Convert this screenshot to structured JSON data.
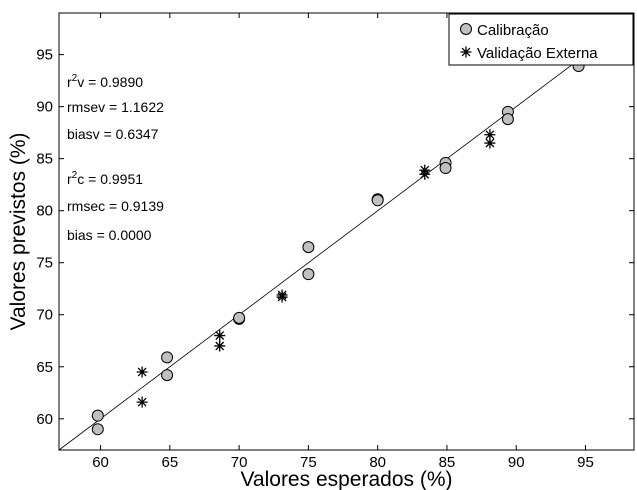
{
  "chart_data": {
    "type": "scatter",
    "title": "",
    "xlabel": "Valores esperados (%)",
    "ylabel": "Valores previstos (%)",
    "xlim": [
      57,
      98.5
    ],
    "ylim": [
      57,
      99
    ],
    "xticks": [
      60,
      65,
      70,
      75,
      80,
      85,
      90,
      95
    ],
    "yticks": [
      60,
      65,
      70,
      75,
      80,
      85,
      90,
      95
    ],
    "grid": false,
    "legend_position": "top-right",
    "reference_line": {
      "label": "",
      "x": [
        57,
        98.5
      ],
      "y": [
        57,
        98.5
      ]
    },
    "series": [
      {
        "name": "Calibração",
        "marker": "circle",
        "color": "#c0c0c0",
        "points": [
          {
            "x": 59.8,
            "y": 60.3
          },
          {
            "x": 59.8,
            "y": 59.0
          },
          {
            "x": 64.8,
            "y": 65.9
          },
          {
            "x": 64.8,
            "y": 64.2
          },
          {
            "x": 70.0,
            "y": 69.6
          },
          {
            "x": 70.0,
            "y": 69.7
          },
          {
            "x": 75.0,
            "y": 76.5
          },
          {
            "x": 75.0,
            "y": 73.9
          },
          {
            "x": 80.0,
            "y": 81.1
          },
          {
            "x": 80.0,
            "y": 81.0
          },
          {
            "x": 84.9,
            "y": 84.6
          },
          {
            "x": 84.9,
            "y": 84.1
          },
          {
            "x": 89.4,
            "y": 89.5
          },
          {
            "x": 89.4,
            "y": 88.8
          },
          {
            "x": 94.5,
            "y": 93.9
          }
        ]
      },
      {
        "name": "Validação Externa",
        "marker": "asterisk",
        "color": "#000000",
        "points": [
          {
            "x": 63.0,
            "y": 64.5
          },
          {
            "x": 63.0,
            "y": 61.6
          },
          {
            "x": 68.6,
            "y": 68.0
          },
          {
            "x": 68.6,
            "y": 67.0
          },
          {
            "x": 73.1,
            "y": 71.9
          },
          {
            "x": 73.1,
            "y": 71.7
          },
          {
            "x": 83.4,
            "y": 83.9
          },
          {
            "x": 83.4,
            "y": 83.5
          },
          {
            "x": 88.1,
            "y": 87.3
          },
          {
            "x": 88.1,
            "y": 86.5
          }
        ]
      }
    ],
    "annotations": [
      {
        "pre": "r",
        "sup": "2",
        "post": "v = 0.9890"
      },
      {
        "pre": "rmsev = 1.1622",
        "sup": "",
        "post": ""
      },
      {
        "pre": "biasv = 0.6347",
        "sup": "",
        "post": ""
      },
      {
        "pre": "r",
        "sup": "2",
        "post": "c = 0.9951"
      },
      {
        "pre": "rmsec = 0.9139",
        "sup": "",
        "post": ""
      },
      {
        "pre": "bias = 0.0000",
        "sup": "",
        "post": ""
      }
    ]
  }
}
